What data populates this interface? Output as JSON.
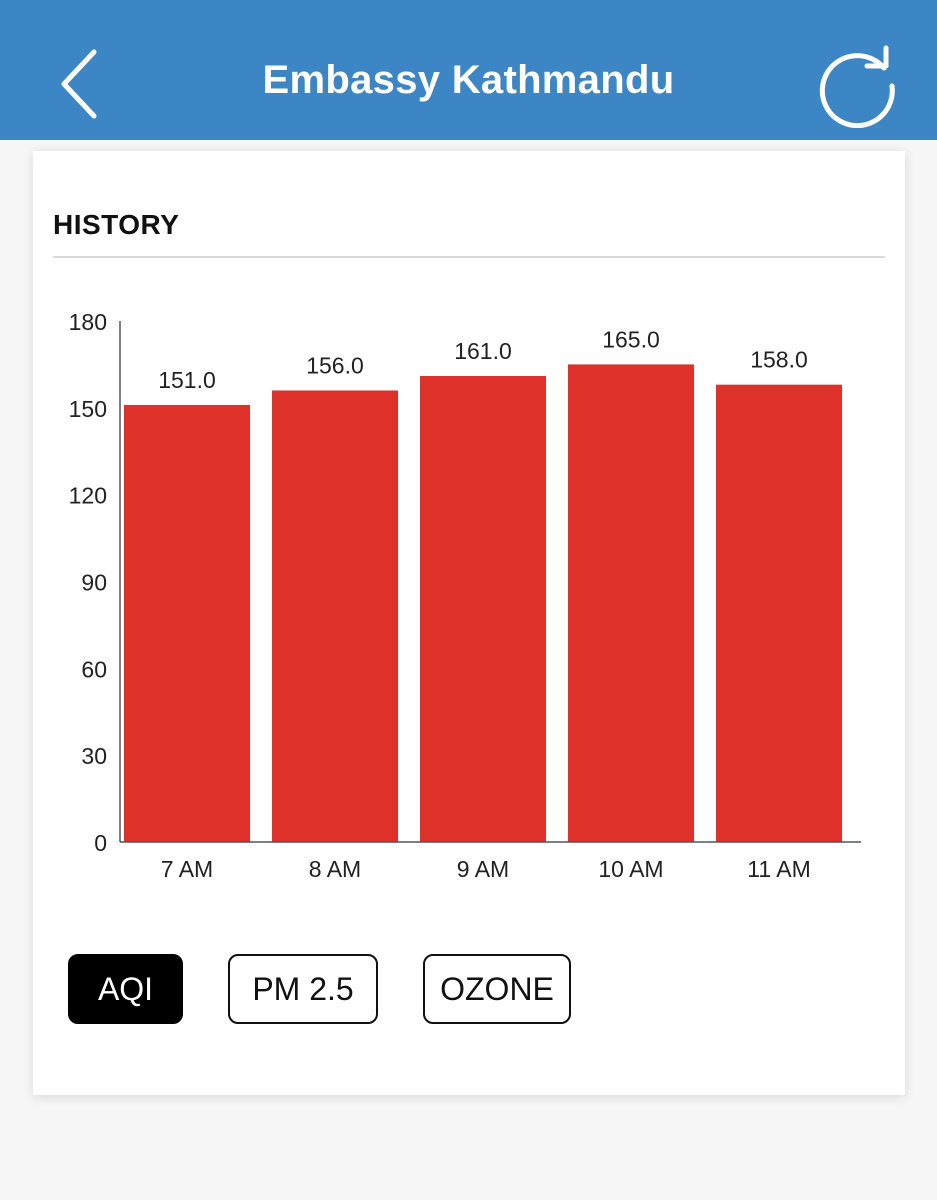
{
  "header": {
    "title": "Embassy Kathmandu",
    "back_icon": "chevron-left-icon",
    "refresh_icon": "refresh-icon",
    "background_color": "#3d86c6"
  },
  "history": {
    "section_title": "HISTORY"
  },
  "chart_data": {
    "type": "bar",
    "categories": [
      "7 AM",
      "8 AM",
      "9 AM",
      "10 AM",
      "11 AM"
    ],
    "values": [
      151.0,
      156.0,
      161.0,
      165.0,
      158.0
    ],
    "value_labels": [
      "151.0",
      "156.0",
      "161.0",
      "165.0",
      "158.0"
    ],
    "yticks": [
      "0",
      "30",
      "60",
      "90",
      "120",
      "150",
      "180"
    ],
    "ylim": [
      0,
      180
    ],
    "bar_color": "#dd3129",
    "grid": false
  },
  "metric_buttons": [
    {
      "label": "AQI",
      "active": true
    },
    {
      "label": "PM 2.5",
      "active": false
    },
    {
      "label": "OZONE",
      "active": false
    }
  ]
}
